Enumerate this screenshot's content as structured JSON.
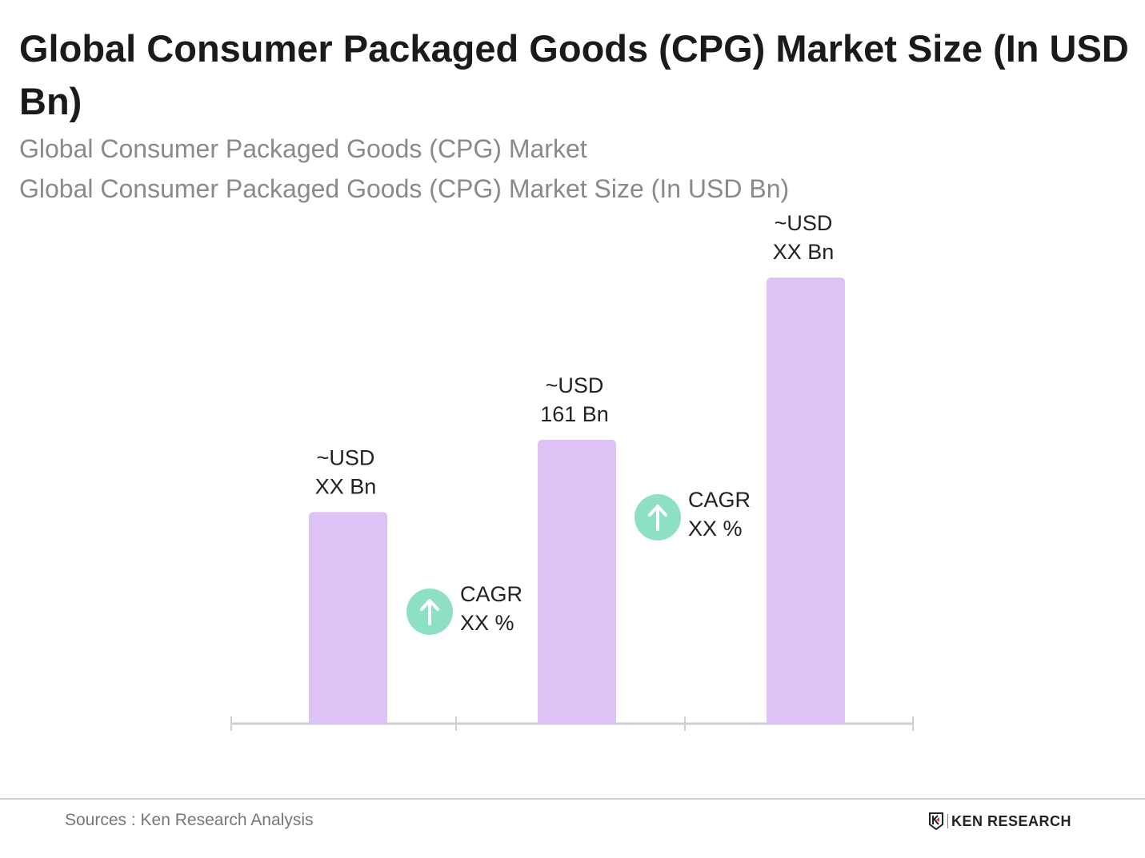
{
  "title": "Global Consumer Packaged Goods (CPG) Market Size (In USD Bn)",
  "subtitle1": "Global Consumer Packaged Goods (CPG) Market",
  "subtitle2": "Global Consumer Packaged Goods (CPG) Market Size (In USD Bn)",
  "chart_data": {
    "type": "bar",
    "categories": [
      "",
      "",
      ""
    ],
    "values": [
      120,
      161,
      253
    ],
    "data_labels": [
      [
        "~USD",
        "XX Bn"
      ],
      [
        "~USD",
        "161 Bn"
      ],
      [
        "~USD",
        "XX Bn"
      ]
    ],
    "cagr_annotations": [
      [
        "CAGR",
        "XX %"
      ],
      [
        "CAGR",
        "XX %"
      ]
    ],
    "ylim": [
      0,
      260
    ],
    "grid": false,
    "colors": {
      "bar": "#dcc2f5",
      "cagr_icon": "#8ee0c4",
      "axis": "#cfcfcf"
    }
  },
  "footer": {
    "source": "Sources : Ken Research Analysis",
    "logo_text": "KEN RESEARCH"
  }
}
